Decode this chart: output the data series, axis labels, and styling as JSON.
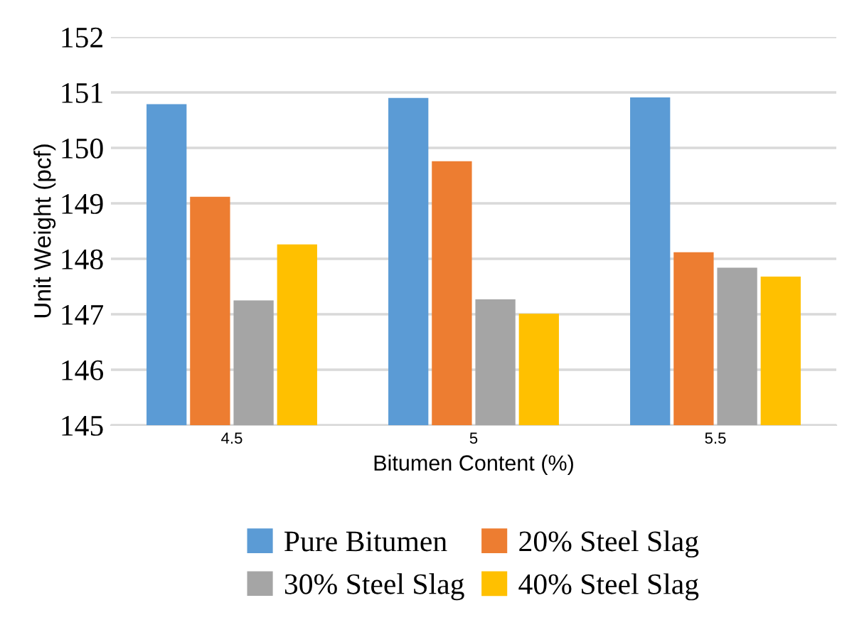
{
  "chart_data": {
    "type": "bar",
    "xlabel": "Bitumen Content (%)",
    "ylabel": "Unit Weight (pcf)",
    "categories": [
      "4.5",
      "5",
      "5.5"
    ],
    "series": [
      {
        "name": "Pure Bitumen",
        "color": "#5b9bd5",
        "values": [
          150.79,
          150.9,
          150.91
        ]
      },
      {
        "name": "20% Steel Slag",
        "color": "#ed7d31",
        "values": [
          149.12,
          149.76,
          148.12
        ]
      },
      {
        "name": "30% Steel Slag",
        "color": "#a5a5a5",
        "values": [
          147.25,
          147.27,
          147.84
        ]
      },
      {
        "name": "40% Steel Slag",
        "color": "#ffc000",
        "values": [
          148.26,
          147.01,
          147.68
        ]
      }
    ],
    "ylim": [
      145,
      152
    ],
    "yticks": [
      145,
      146,
      147,
      148,
      149,
      150,
      151,
      152
    ],
    "grid": "y",
    "legend": "bottom"
  }
}
